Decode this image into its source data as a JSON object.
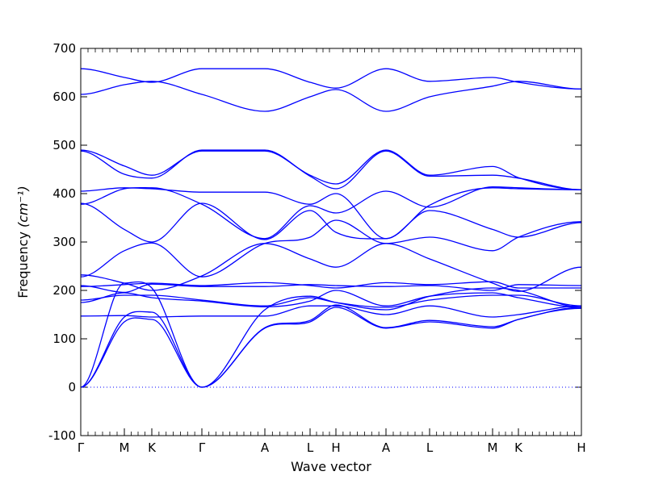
{
  "chart_data": {
    "type": "line",
    "xlabel": "Wave vector",
    "ylabel": "Frequency",
    "ylabel_unit": "(cm⁻¹)",
    "ylim": [
      -100,
      700
    ],
    "yticks": [
      -100,
      0,
      100,
      200,
      300,
      400,
      500,
      600,
      700
    ],
    "xlim": [
      0,
      31
    ],
    "high_symmetry_points": [
      {
        "label": "Γ",
        "x": 0
      },
      {
        "label": "M",
        "x": 2.7
      },
      {
        "label": "K",
        "x": 4.4
      },
      {
        "label": "Γ",
        "x": 7.5
      },
      {
        "label": "A",
        "x": 11.4
      },
      {
        "label": "L",
        "x": 14.2
      },
      {
        "label": "H",
        "x": 15.8
      },
      {
        "label": "A",
        "x": 18.9
      },
      {
        "label": "L",
        "x": 21.6
      },
      {
        "label": "M",
        "x": 25.5
      },
      {
        "label": "K",
        "x": 27.1
      },
      {
        "label": "H",
        "x": 31
      }
    ],
    "reference_line": {
      "y": 0,
      "style": "dotted"
    },
    "series": [
      {
        "x": [
          0,
          2.7,
          4.4,
          7.5,
          11.4,
          14.2,
          15.8,
          18.9,
          21.6,
          25.5,
          27.1,
          31
        ],
        "values": [
          658,
          640,
          630,
          658,
          658,
          630,
          618,
          658,
          632,
          640,
          630,
          616
        ]
      },
      {
        "x": [
          0,
          2.7,
          4.4,
          7.5,
          11.4,
          14.2,
          15.8,
          18.9,
          21.6,
          25.5,
          27.1,
          31
        ],
        "values": [
          605,
          625,
          632,
          605,
          570,
          600,
          615,
          570,
          600,
          622,
          632,
          616
        ]
      },
      {
        "x": [
          0,
          2.7,
          4.4,
          7.5,
          11.4,
          14.2,
          15.8,
          18.9,
          21.6,
          25.5,
          27.1,
          31
        ],
        "values": [
          490,
          457,
          438,
          488,
          488,
          438,
          420,
          490,
          438,
          456,
          433,
          408
        ]
      },
      {
        "x": [
          0,
          2.7,
          4.4,
          7.5,
          11.4,
          14.2,
          15.8,
          18.9,
          21.6,
          25.5,
          27.1,
          31
        ],
        "values": [
          488,
          440,
          432,
          490,
          490,
          436,
          410,
          488,
          436,
          438,
          432,
          408
        ]
      },
      {
        "x": [
          0,
          2.7,
          4.4,
          7.5,
          11.4,
          14.2,
          15.8,
          18.9,
          21.6,
          25.5,
          27.1,
          31
        ],
        "values": [
          405,
          412,
          410,
          403,
          403,
          378,
          400,
          307,
          376,
          412,
          410,
          408
        ]
      },
      {
        "x": [
          0,
          2.7,
          4.4,
          7.5,
          11.4,
          14.2,
          15.8,
          18.9,
          21.6,
          25.5,
          27.1,
          31
        ],
        "values": [
          378,
          410,
          412,
          378,
          307,
          375,
          360,
          405,
          372,
          414,
          412,
          408
        ]
      },
      {
        "x": [
          0,
          2.7,
          4.4,
          7.5,
          11.4,
          14.2,
          15.8,
          18.9,
          21.6,
          25.5,
          27.1,
          31
        ],
        "values": [
          380,
          326,
          300,
          380,
          305,
          365,
          320,
          307,
          365,
          326,
          310,
          340
        ]
      },
      {
        "x": [
          0,
          2.7,
          4.4,
          7.5,
          11.4,
          14.2,
          15.8,
          18.9,
          21.6,
          25.5,
          27.1,
          31
        ],
        "values": [
          228,
          282,
          298,
          228,
          297,
          310,
          345,
          297,
          310,
          282,
          310,
          342
        ]
      },
      {
        "x": [
          0,
          2.7,
          4.4,
          7.5,
          11.4,
          14.2,
          15.8,
          18.9,
          21.6,
          25.5,
          27.1,
          31
        ],
        "values": [
          232,
          215,
          200,
          230,
          297,
          265,
          248,
          297,
          265,
          215,
          198,
          248
        ]
      },
      {
        "x": [
          0,
          2.7,
          4.4,
          7.5,
          11.4,
          14.2,
          15.8,
          18.9,
          21.6,
          25.5,
          27.1,
          31
        ],
        "values": [
          210,
          196,
          213,
          208,
          208,
          212,
          210,
          208,
          210,
          200,
          212,
          210
        ]
      },
      {
        "x": [
          0,
          2.7,
          4.4,
          7.5,
          11.4,
          14.2,
          15.8,
          18.9,
          21.6,
          25.5,
          27.1,
          31
        ],
        "values": [
          208,
          212,
          215,
          210,
          216,
          210,
          205,
          216,
          212,
          218,
          205,
          205
        ]
      },
      {
        "x": [
          0,
          2.7,
          4.4,
          7.5,
          11.4,
          14.2,
          15.8,
          18.9,
          21.6,
          25.5,
          27.1,
          31
        ],
        "values": [
          180,
          190,
          190,
          180,
          168,
          185,
          175,
          165,
          180,
          190,
          190,
          168
        ]
      },
      {
        "x": [
          0,
          2.7,
          4.4,
          7.5,
          11.4,
          14.2,
          15.8,
          18.9,
          21.6,
          25.5,
          27.1,
          31
        ],
        "values": [
          175,
          195,
          185,
          178,
          166,
          178,
          200,
          168,
          188,
          195,
          185,
          165
        ]
      },
      {
        "x": [
          0,
          2.7,
          4.4,
          7.5,
          11.4,
          14.2,
          15.8,
          18.9,
          21.6,
          25.5,
          27.1,
          31
        ],
        "values": [
          147,
          148,
          145,
          147,
          147,
          168,
          168,
          150,
          168,
          145,
          150,
          168
        ]
      },
      {
        "x": [
          0,
          2.7,
          4.4,
          7.5,
          11.4,
          14.2,
          15.8,
          18.9,
          21.6,
          25.5,
          27.1,
          31
        ],
        "values": [
          0,
          145,
          155,
          0,
          123,
          138,
          170,
          123,
          138,
          125,
          140,
          165
        ]
      },
      {
        "x": [
          0,
          2.7,
          4.4,
          7.5,
          11.4,
          14.2,
          15.8,
          18.9,
          21.6,
          25.5,
          27.1,
          31
        ],
        "values": [
          0,
          135,
          140,
          0,
          122,
          135,
          165,
          122,
          135,
          122,
          140,
          163
        ]
      },
      {
        "x": [
          0,
          2.7,
          4.4,
          7.5,
          11.4,
          14.2,
          15.8,
          18.9,
          21.6,
          25.5,
          27.1,
          31
        ],
        "values": [
          0,
          215,
          205,
          0,
          160,
          188,
          175,
          160,
          188,
          205,
          200,
          165
        ]
      }
    ]
  }
}
